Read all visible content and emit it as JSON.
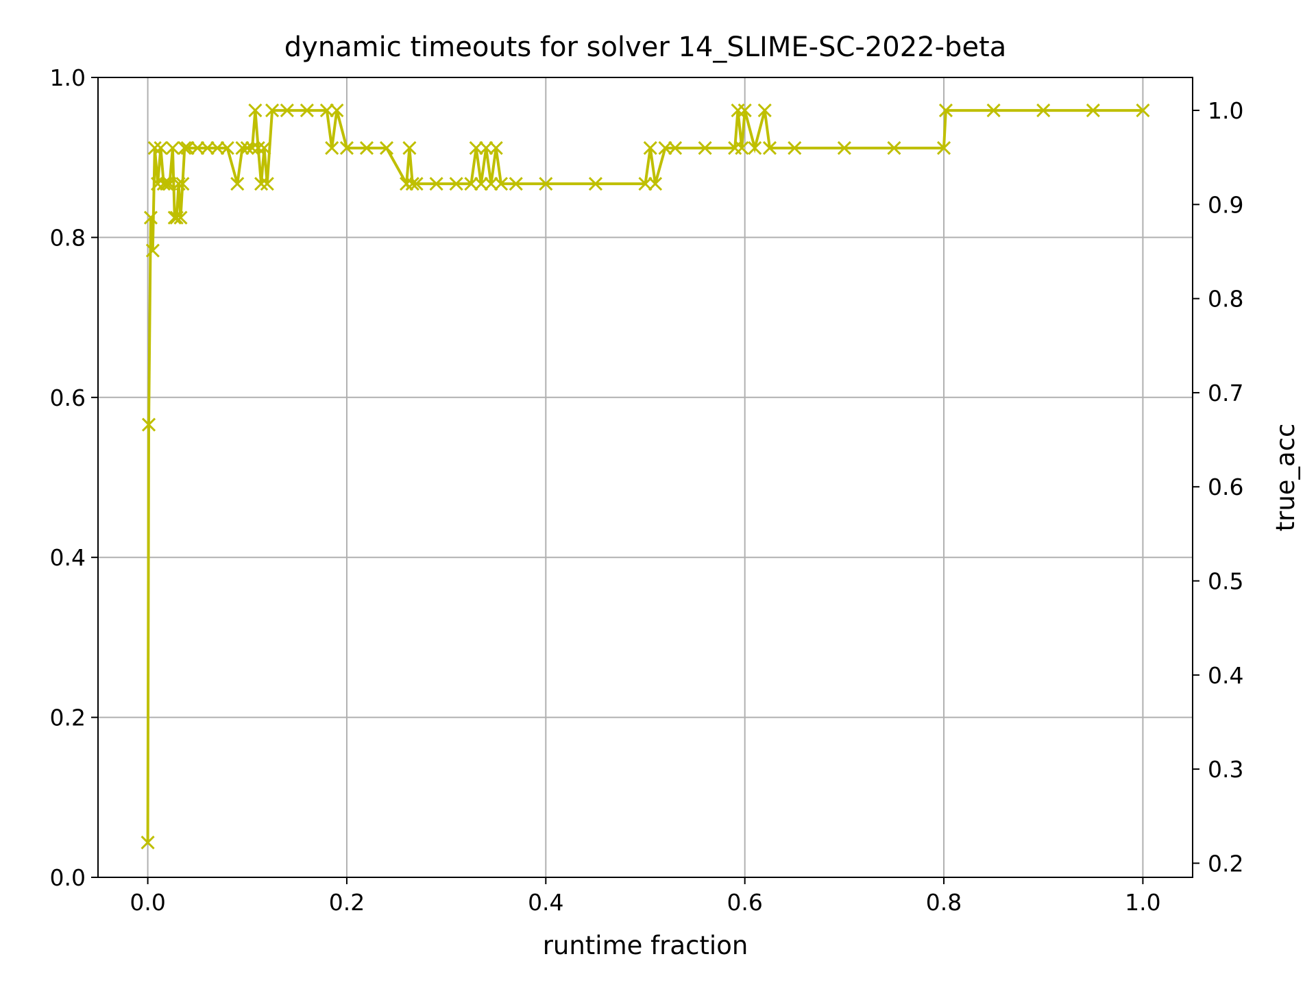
{
  "chart_data": {
    "type": "line",
    "title": "dynamic timeouts for solver 14_SLIME-SC-2022-beta",
    "xlabel": "runtime fraction",
    "ylabel": "",
    "y2label": "true_acc",
    "y2label_color": "#ff0000",
    "xlim": [
      -0.05,
      1.05
    ],
    "ylim": [
      0.0,
      1.0
    ],
    "y2lim": [
      0.185,
      1.035
    ],
    "xticks": [
      "0.0",
      "0.2",
      "0.4",
      "0.6",
      "0.8",
      "1.0"
    ],
    "yticks": [
      "0.0",
      "0.2",
      "0.4",
      "0.6",
      "0.8",
      "1.0"
    ],
    "y2ticks": [
      "0.2",
      "0.3",
      "0.4",
      "0.5",
      "0.6",
      "0.7",
      "0.8",
      "0.9",
      "1.0"
    ],
    "grid": true,
    "marker": "x",
    "series": [
      {
        "color": "#bfbf00",
        "axis": "right",
        "x": [
          0.0,
          0.001,
          0.003,
          0.005,
          0.007,
          0.01,
          0.013,
          0.016,
          0.019,
          0.022,
          0.025,
          0.027,
          0.029,
          0.031,
          0.033,
          0.035,
          0.037,
          0.04,
          0.05,
          0.06,
          0.07,
          0.08,
          0.09,
          0.095,
          0.1,
          0.105,
          0.108,
          0.111,
          0.114,
          0.117,
          0.12,
          0.125,
          0.14,
          0.16,
          0.18,
          0.185,
          0.19,
          0.2,
          0.22,
          0.24,
          0.26,
          0.263,
          0.266,
          0.27,
          0.29,
          0.31,
          0.325,
          0.33,
          0.335,
          0.34,
          0.345,
          0.35,
          0.355,
          0.37,
          0.4,
          0.45,
          0.5,
          0.505,
          0.51,
          0.52,
          0.53,
          0.56,
          0.59,
          0.593,
          0.597,
          0.6,
          0.61,
          0.62,
          0.625,
          0.65,
          0.7,
          0.75,
          0.8,
          0.802,
          0.85,
          0.9,
          0.95,
          1.0
        ],
        "values": [
          0.222,
          0.666,
          0.886,
          0.851,
          0.96,
          0.922,
          0.96,
          0.922,
          0.922,
          0.922,
          0.96,
          0.886,
          0.886,
          0.922,
          0.886,
          0.922,
          0.96,
          0.96,
          0.96,
          0.96,
          0.96,
          0.96,
          0.922,
          0.96,
          0.96,
          0.96,
          1.0,
          0.96,
          0.922,
          0.96,
          0.922,
          1.0,
          1.0,
          1.0,
          1.0,
          0.96,
          1.0,
          0.96,
          0.96,
          0.96,
          0.922,
          0.96,
          0.922,
          0.922,
          0.922,
          0.922,
          0.922,
          0.96,
          0.922,
          0.96,
          0.922,
          0.96,
          0.922,
          0.922,
          0.922,
          0.922,
          0.922,
          0.96,
          0.922,
          0.96,
          0.96,
          0.96,
          0.96,
          1.0,
          0.96,
          1.0,
          0.96,
          1.0,
          0.96,
          0.96,
          0.96,
          0.96,
          0.96,
          1.0,
          1.0,
          1.0,
          1.0,
          1.0
        ]
      }
    ]
  }
}
